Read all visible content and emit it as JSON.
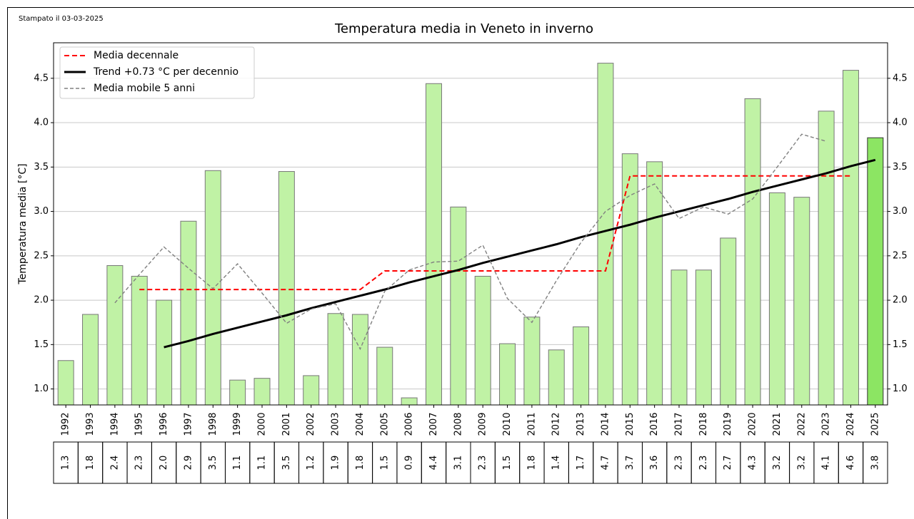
{
  "stamp": "Stampato il 03-03-2025",
  "chart_data": {
    "type": "bar",
    "title": "Temperatura media in Veneto in inverno",
    "ylabel": "Temperatura media [°C]",
    "categories": [
      "1992",
      "1993",
      "1994",
      "1995",
      "1996",
      "1997",
      "1998",
      "1999",
      "2000",
      "2001",
      "2002",
      "2003",
      "2004",
      "2005",
      "2006",
      "2007",
      "2008",
      "2009",
      "2010",
      "2011",
      "2012",
      "2013",
      "2014",
      "2015",
      "2016",
      "2017",
      "2018",
      "2019",
      "2020",
      "2021",
      "2022",
      "2023",
      "2024",
      "2025"
    ],
    "values": [
      1.32,
      1.84,
      2.39,
      2.27,
      2.0,
      2.89,
      3.46,
      1.1,
      1.12,
      3.45,
      1.15,
      1.85,
      1.84,
      1.47,
      0.9,
      4.44,
      3.05,
      2.27,
      1.51,
      1.81,
      1.44,
      1.7,
      4.67,
      3.65,
      3.56,
      2.34,
      2.34,
      2.7,
      4.27,
      3.21,
      3.16,
      4.13,
      4.59,
      3.83
    ],
    "value_labels": [
      "1.3",
      "1.8",
      "2.4",
      "2.3",
      "2.0",
      "2.9",
      "3.5",
      "1.1",
      "1.1",
      "3.5",
      "1.2",
      "1.9",
      "1.8",
      "1.5",
      "0.9",
      "4.4",
      "3.1",
      "2.3",
      "1.5",
      "1.8",
      "1.4",
      "1.7",
      "4.7",
      "3.7",
      "3.6",
      "2.3",
      "2.3",
      "2.7",
      "4.3",
      "3.2",
      "3.2",
      "4.1",
      "4.6",
      "3.8"
    ],
    "color": "#c0f2a5",
    "last_bar_color": "#8ce563",
    "series": [
      {
        "name": "Media decennale",
        "color": "#ff0000",
        "style": "dashed",
        "values": [
          null,
          null,
          null,
          2.12,
          2.12,
          2.12,
          2.12,
          2.12,
          2.12,
          2.12,
          2.12,
          2.12,
          2.12,
          2.33,
          2.33,
          2.33,
          2.33,
          2.33,
          2.33,
          2.33,
          2.33,
          2.33,
          2.33,
          3.4,
          3.4,
          3.4,
          3.4,
          3.4,
          3.4,
          3.4,
          3.4,
          3.4,
          3.4,
          null
        ]
      },
      {
        "name": "Trend +0.73 °C per decennio",
        "color": "#000000",
        "style": "solid",
        "values": [
          null,
          null,
          null,
          null,
          1.47,
          1.54,
          1.62,
          1.69,
          1.76,
          1.83,
          1.91,
          1.98,
          2.05,
          2.12,
          2.2,
          2.27,
          2.34,
          2.42,
          2.49,
          2.56,
          2.63,
          2.71,
          2.78,
          2.85,
          2.93,
          3.0,
          3.07,
          3.14,
          3.22,
          3.29,
          3.36,
          3.43,
          3.51,
          3.58
        ]
      },
      {
        "name": "Media mobile 5 anni",
        "color": "#808080",
        "style": "dashed-thin",
        "values": [
          null,
          null,
          1.97,
          2.29,
          2.6,
          2.36,
          2.13,
          2.41,
          2.08,
          1.74,
          1.9,
          1.96,
          1.45,
          2.1,
          2.34,
          2.43,
          2.44,
          2.62,
          2.02,
          1.75,
          2.22,
          2.65,
          3.0,
          3.18,
          3.31,
          2.92,
          3.05,
          2.97,
          3.14,
          3.5,
          3.87,
          3.79,
          null,
          null
        ]
      }
    ],
    "ylim": [
      0.82,
      4.9
    ],
    "yticks": [
      {
        "value": 1,
        "label": "1.0"
      },
      1.5,
      {
        "value": 2,
        "label": "2.0"
      },
      2.5,
      {
        "value": 3,
        "label": "3.0"
      },
      3.5,
      {
        "value": 4,
        "label": "4.0"
      },
      4.5
    ],
    "grid": true,
    "legend": "upper left"
  }
}
